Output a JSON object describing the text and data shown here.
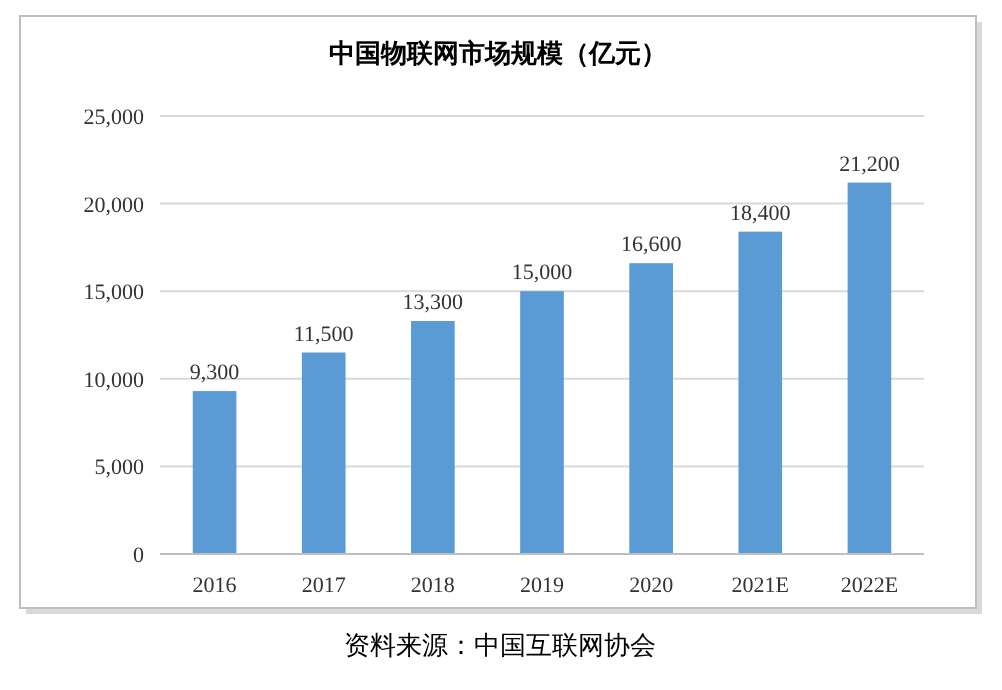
{
  "chart_data": {
    "type": "bar",
    "title": "中国物联网市场规模（亿元）",
    "categories": [
      "2016",
      "2017",
      "2018",
      "2019",
      "2020",
      "2021E",
      "2022E"
    ],
    "values": [
      9300,
      11500,
      13300,
      15000,
      16600,
      18400,
      21200
    ],
    "value_labels": [
      "9,300",
      "11,500",
      "13,300",
      "15,000",
      "16,600",
      "18,400",
      "21,200"
    ],
    "color": "#5b9bd5",
    "ylim": [
      0,
      25000
    ],
    "yticks": [
      {
        "value": 0,
        "label": "0"
      },
      {
        "value": 5000,
        "label": "5,000"
      },
      {
        "value": 10000,
        "label": "10,000"
      },
      {
        "value": 15000,
        "label": "15,000"
      },
      {
        "value": 20000,
        "label": "20,000"
      },
      {
        "value": 25000,
        "label": "25,000"
      }
    ],
    "grid": "y",
    "annotations": [
      "资料来源：中国互联网协会"
    ]
  }
}
